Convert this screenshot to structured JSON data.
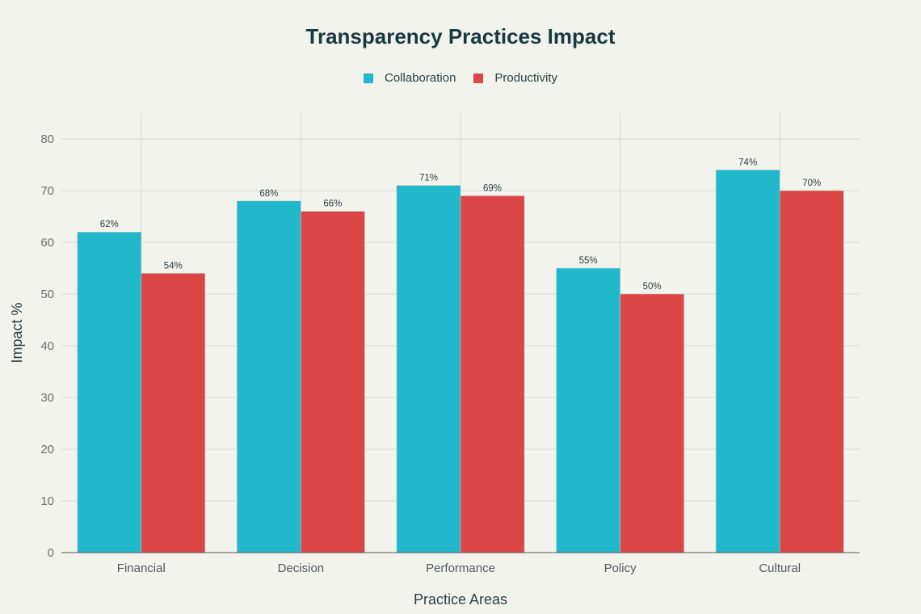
{
  "chart_data": {
    "type": "bar",
    "title": "Transparency Practices Impact",
    "xlabel": "Practice Areas",
    "ylabel": "Impact %",
    "ylim": [
      0,
      85
    ],
    "yticks": [
      0,
      10,
      20,
      30,
      40,
      50,
      60,
      70,
      80
    ],
    "grid": true,
    "legend_position": "top-center",
    "categories": [
      "Financial",
      "Decision",
      "Performance",
      "Policy",
      "Cultural"
    ],
    "series": [
      {
        "name": "Collaboration",
        "color": "#21b8cc",
        "values": [
          62,
          68,
          71,
          55,
          74
        ],
        "labels": [
          "62%",
          "68%",
          "71%",
          "55%",
          "74%"
        ]
      },
      {
        "name": "Productivity",
        "color": "#db4545",
        "values": [
          54,
          66,
          69,
          50,
          70
        ],
        "labels": [
          "54%",
          "66%",
          "69%",
          "50%",
          "70%"
        ]
      }
    ]
  }
}
